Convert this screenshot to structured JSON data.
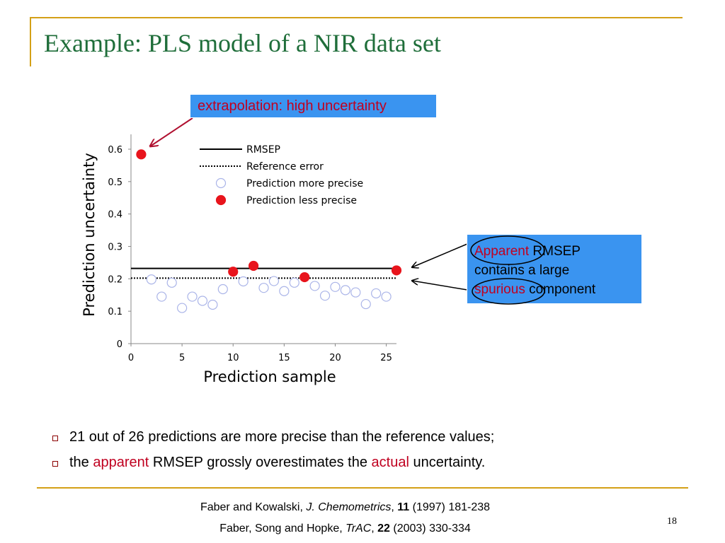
{
  "slide": {
    "title": "Example: PLS model of a NIR data set",
    "page_number": "18",
    "accent_color": "#d4a017",
    "title_color": "#1f6e3a"
  },
  "callouts": {
    "extrapolation": "extrapolation: high uncertainty",
    "apparent_line1_red": "Apparent",
    "apparent_line1_rest": " RMSEP",
    "apparent_line2": "contains a large",
    "apparent_line3_red": "spurious",
    "apparent_line3_rest": " component",
    "box_color": "#3a94f0"
  },
  "bullets": [
    {
      "text": "21 out of 26 predictions are more precise than the reference values;"
    },
    {
      "pre": "the ",
      "red1": "apparent",
      "mid": " RMSEP grossly overestimates the ",
      "red2": "actual",
      "post": " uncertainty."
    }
  ],
  "references": [
    {
      "pre": "Faber and Kowalski, ",
      "journal": "J. Chemometrics",
      "sep": ", ",
      "vol": "11",
      "rest": " (1997) 181-238"
    },
    {
      "pre": "Faber, Song and Hopke, ",
      "journal": "TrAC",
      "sep": ", ",
      "vol": "22",
      "rest": " (2003) 330-334"
    }
  ],
  "chart_data": {
    "type": "scatter",
    "title": "",
    "xlabel": "Prediction sample",
    "ylabel": "Prediction uncertainty",
    "xlim": [
      0,
      26
    ],
    "ylim": [
      0,
      0.6
    ],
    "xticks": [
      0,
      5,
      10,
      15,
      20,
      25
    ],
    "yticks": [
      0,
      0.1,
      0.2,
      0.3,
      0.4,
      0.5,
      0.6
    ],
    "ytick_labels": [
      "0",
      "0.1",
      "0.2",
      "0.3",
      "0.4",
      "0.5",
      "0.6"
    ],
    "grid": false,
    "legend_position": "top-center",
    "series": [
      {
        "name": "RMSEP",
        "kind": "hline",
        "style": "solid",
        "y": 0.232
      },
      {
        "name": "Reference error",
        "kind": "hline",
        "style": "dotted",
        "y": 0.202
      },
      {
        "name": "Prediction more precise",
        "kind": "points",
        "marker": "open-circle",
        "points": [
          [
            2,
            0.198
          ],
          [
            3,
            0.145
          ],
          [
            4,
            0.188
          ],
          [
            5,
            0.11
          ],
          [
            6,
            0.145
          ],
          [
            7,
            0.132
          ],
          [
            8,
            0.12
          ],
          [
            9,
            0.168
          ],
          [
            11,
            0.192
          ],
          [
            13,
            0.172
          ],
          [
            14,
            0.193
          ],
          [
            15,
            0.162
          ],
          [
            16,
            0.188
          ],
          [
            18,
            0.178
          ],
          [
            19,
            0.148
          ],
          [
            20,
            0.175
          ],
          [
            21,
            0.165
          ],
          [
            22,
            0.158
          ],
          [
            23,
            0.122
          ],
          [
            24,
            0.155
          ],
          [
            25,
            0.145
          ]
        ]
      },
      {
        "name": "Prediction less precise",
        "kind": "points",
        "marker": "filled-circle",
        "color": "#e8141c",
        "points": [
          [
            1,
            0.584
          ],
          [
            10,
            0.222
          ],
          [
            12,
            0.24
          ],
          [
            17,
            0.205
          ],
          [
            26,
            0.226
          ]
        ]
      }
    ]
  }
}
